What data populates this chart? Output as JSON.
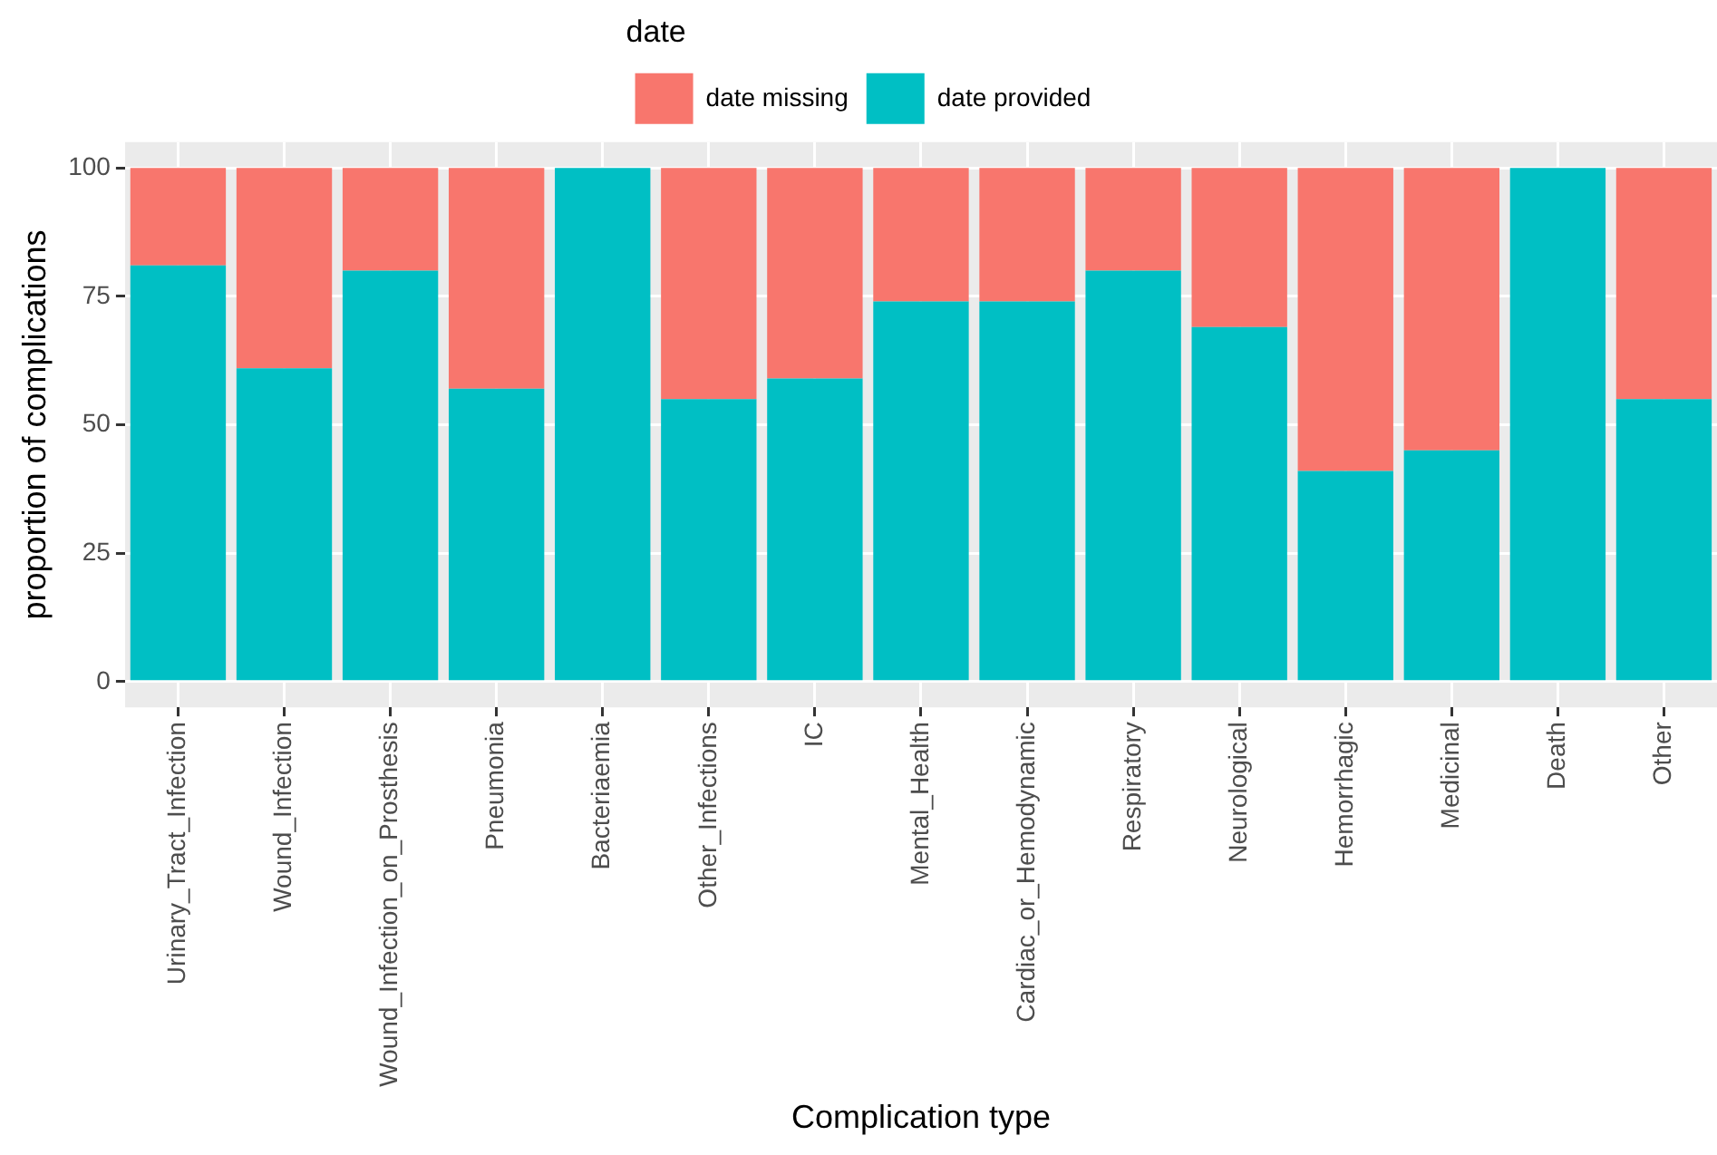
{
  "chart_data": {
    "type": "bar",
    "stacked": true,
    "xlabel": "Complication type",
    "ylabel": "proportion of complications",
    "legend_title": "date",
    "legend": "top",
    "categories": [
      "Urinary_Tract_Infection",
      "Wound_Infection",
      "Wound_Infection_on_Prosthesis",
      "Pneumonia",
      "Bacteriaemia",
      "Other_Infections",
      "IC",
      "Mental_Health",
      "Cardiac_or_Hemodynamic",
      "Respiratory",
      "Neurological",
      "Hemorrhagic",
      "Medicinal",
      "Death",
      "Other"
    ],
    "series": [
      {
        "name": "date provided",
        "color": "#00bfc4",
        "values": [
          81,
          61,
          80,
          57,
          100,
          55,
          59,
          74,
          74,
          80,
          69,
          41,
          45,
          100,
          55
        ]
      },
      {
        "name": "date missing",
        "color": "#f8766d",
        "values": [
          19,
          39,
          20,
          43,
          0,
          45,
          41,
          26,
          26,
          20,
          31,
          59,
          55,
          0,
          45
        ]
      }
    ],
    "ylim": [
      -5,
      105
    ],
    "yticks": [
      0,
      25,
      50,
      75,
      100
    ],
    "grid": true
  }
}
